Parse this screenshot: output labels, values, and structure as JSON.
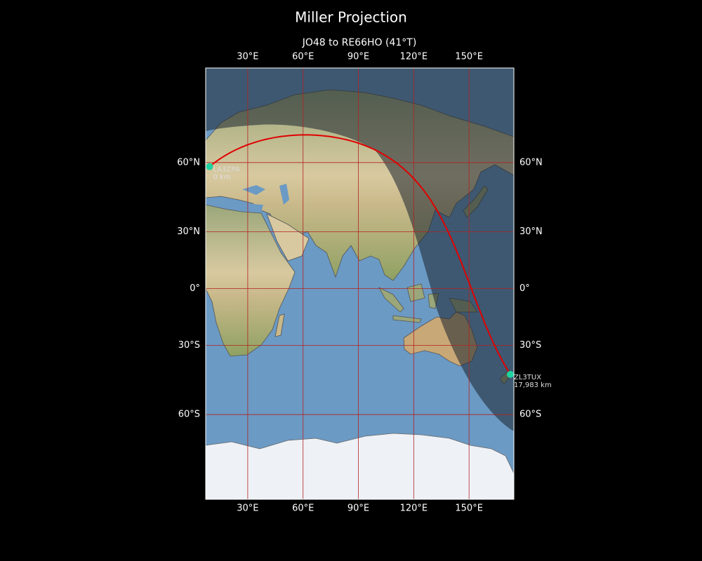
{
  "chart_data": {
    "type": "map",
    "title": "Miller Projection",
    "subtitle": "JO48 to RE66HO (41°T)",
    "projection": "miller",
    "xlim": [
      7.2,
      174.3
    ],
    "ylim": [
      -84,
      86
    ],
    "xticks": [
      {
        "value": 30,
        "label": "30°E"
      },
      {
        "value": 60,
        "label": "60°E"
      },
      {
        "value": 90,
        "label": "90°E"
      },
      {
        "value": 120,
        "label": "120°E"
      },
      {
        "value": 150,
        "label": "150°E"
      }
    ],
    "yticks": [
      {
        "value": 60,
        "label": "60°N"
      },
      {
        "value": 30,
        "label": "30°N"
      },
      {
        "value": 0,
        "label": "0°"
      },
      {
        "value": -30,
        "label": "30°S"
      },
      {
        "value": -60,
        "label": "60°S"
      }
    ],
    "grid": true,
    "grid_color": "#b22222",
    "path_color": "#e00000",
    "marker_color": "#1fd3a0",
    "points": [
      {
        "name": "LA3ZPA",
        "label": "0 km",
        "lon": 9.3,
        "lat": 58.5
      },
      {
        "name": "ZL3TUX",
        "label": "17,983 km",
        "lon": 172.4,
        "lat": -43.7
      }
    ]
  }
}
